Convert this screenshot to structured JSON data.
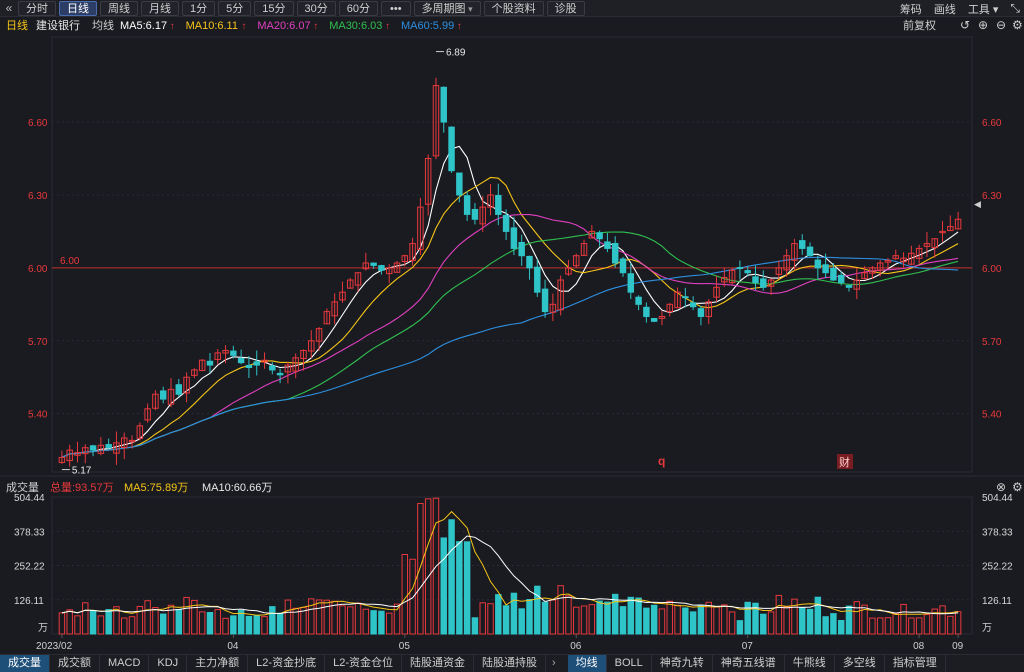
{
  "toolbar": {
    "back_icon": "«",
    "tabs": [
      "分时",
      "日线",
      "周线",
      "月线",
      "1分",
      "5分",
      "15分",
      "30分",
      "60分"
    ],
    "active_tab": 1,
    "more": "•••",
    "multi_period": "多周期图",
    "profile": "个股资料",
    "diagnose": "诊股",
    "right": [
      "筹码",
      "画线",
      "工具"
    ],
    "window_icons": [
      "restore-icon"
    ]
  },
  "header": {
    "period": "日线",
    "stock_name": "建设银行",
    "ma_label": "均线",
    "ma": [
      {
        "label": "MA5:6.17",
        "color": "#ffffff"
      },
      {
        "label": "MA10:6.11",
        "color": "#f5c518"
      },
      {
        "label": "MA20:6.07",
        "color": "#e040c0"
      },
      {
        "label": "MA30:6.03",
        "color": "#30c050"
      },
      {
        "label": "MA60:5.99",
        "color": "#2e8fe0"
      }
    ],
    "rights_label": "前复权"
  },
  "price_axis": {
    "ticks": [
      "6.60",
      "6.30",
      "6.00",
      "5.70",
      "5.40"
    ],
    "ref_price": "6.00",
    "high_label": "6.89",
    "low_label": "5.17",
    "markers": [
      "q",
      "财"
    ]
  },
  "volume": {
    "title": "成交量",
    "total": "总量:93.57万",
    "ma5": "MA5:75.89万",
    "ma10": "MA10:60.66万",
    "ticks": [
      "504.44",
      "378.33",
      "252.22",
      "126.11"
    ],
    "unit": "万"
  },
  "x_axis": {
    "labels": [
      "2023/02",
      "04",
      "05",
      "06",
      "07",
      "08",
      "09"
    ]
  },
  "bottom_tabs": {
    "left": [
      "成交量",
      "成交额",
      "MACD",
      "KDJ",
      "主力净额",
      "L2-资金抄底",
      "L2-资金仓位",
      "陆股通资金",
      "陆股通持股"
    ],
    "arrow": "›",
    "right": [
      "均线",
      "BOLL",
      "神奇九转",
      "神奇五线谱",
      "牛熊线",
      "多空线",
      "指标管理"
    ]
  },
  "colors": {
    "up": "#e8383d",
    "down": "#2ec4c8",
    "grid": "#2a2b33"
  },
  "chart_data": {
    "type": "candlestick",
    "y_range": [
      5.16,
      6.95
    ],
    "volume_range": [
      0,
      504.44
    ],
    "close_series": [
      5.22,
      5.25,
      5.24,
      5.26,
      5.25,
      5.27,
      5.26,
      5.28,
      5.3,
      5.29,
      5.35,
      5.42,
      5.48,
      5.46,
      5.5,
      5.48,
      5.55,
      5.58,
      5.62,
      5.6,
      5.65,
      5.66,
      5.64,
      5.61,
      5.59,
      5.6,
      5.62,
      5.58,
      5.56,
      5.6,
      5.63,
      5.66,
      5.7,
      5.75,
      5.82,
      5.86,
      5.9,
      5.95,
      5.98,
      6.02,
      6.01,
      5.99,
      6.0,
      6.02,
      6.05,
      6.1,
      6.25,
      6.45,
      6.75,
      6.6,
      6.4,
      6.3,
      6.22,
      6.2,
      6.25,
      6.3,
      6.22,
      6.15,
      6.08,
      6.05,
      6.0,
      5.9,
      5.82,
      5.85,
      5.95,
      6.0,
      6.05,
      6.1,
      6.15,
      6.12,
      6.08,
      6.02,
      5.98,
      5.9,
      5.85,
      5.8,
      5.78,
      5.8,
      5.85,
      5.9,
      5.88,
      5.84,
      5.8,
      5.86,
      5.92,
      5.96,
      5.99,
      6.0,
      5.98,
      5.94,
      5.92,
      5.95,
      6.0,
      6.05,
      6.1,
      6.08,
      6.05,
      6.0,
      5.98,
      5.95,
      5.94,
      5.92,
      5.95,
      5.98,
      6.0,
      6.02,
      6.03,
      6.05,
      6.04,
      6.06,
      6.08,
      6.1,
      6.12,
      6.15,
      6.17,
      6.2
    ],
    "x_labels": [
      "2023/02",
      "04",
      "05",
      "06",
      "07",
      "08",
      "09"
    ]
  }
}
